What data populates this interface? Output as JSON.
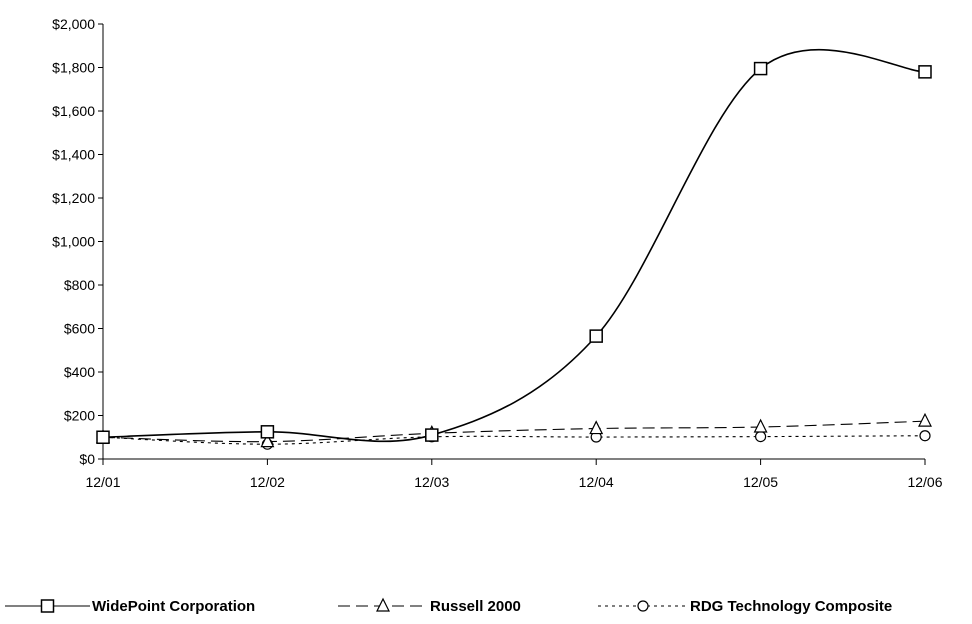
{
  "chart_data": {
    "type": "line",
    "title": "",
    "xlabel": "",
    "ylabel": "",
    "categories": [
      "12/01",
      "12/02",
      "12/03",
      "12/04",
      "12/05",
      "12/06"
    ],
    "ylim": [
      0,
      2000
    ],
    "yticks": [
      0,
      200,
      400,
      600,
      800,
      1000,
      1200,
      1400,
      1600,
      1800,
      2000
    ],
    "ytick_labels": [
      "$0",
      "$200",
      "$400",
      "$600",
      "$800",
      "$1,000",
      "$1,200",
      "$1,400",
      "$1,600",
      "$1,800",
      "$2,000"
    ],
    "grid": false,
    "legend_position": "bottom",
    "series": [
      {
        "name": "WidePoint Corporation",
        "values": [
          100,
          125,
          110,
          565,
          1795,
          1780
        ],
        "marker": "square",
        "line_style": "solid",
        "color": "#000000"
      },
      {
        "name": "Russell 2000",
        "values": [
          100,
          80,
          118,
          140,
          147,
          174
        ],
        "marker": "triangle",
        "line_style": "dashed",
        "color": "#000000"
      },
      {
        "name": "RDG Technology Composite",
        "values": [
          100,
          68,
          102,
          101,
          103,
          107
        ],
        "marker": "circle",
        "line_style": "dotted",
        "color": "#000000"
      }
    ]
  }
}
